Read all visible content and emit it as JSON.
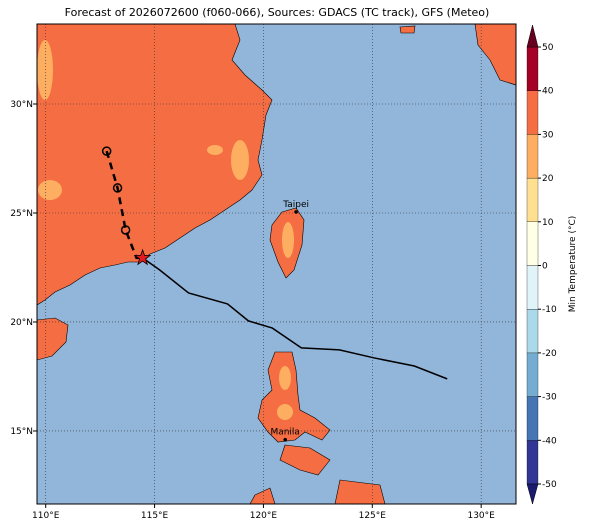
{
  "map": {
    "title": "Forecast of 2026072600 (f060-066), Sources: GDACS (TC track), GFS (Meteo)",
    "xlim": [
      109.6,
      131.6
    ],
    "ylim": [
      11.65,
      33.67
    ],
    "xticks": [
      {
        "value": 110,
        "label": "110°E"
      },
      {
        "value": 115,
        "label": "115°E"
      },
      {
        "value": 120,
        "label": "120°E"
      },
      {
        "value": 125,
        "label": "125°E"
      },
      {
        "value": 130,
        "label": "130°E"
      }
    ],
    "yticks": [
      {
        "value": 15,
        "label": "15°N"
      },
      {
        "value": 20,
        "label": "20°N"
      },
      {
        "value": 25,
        "label": "25°N"
      },
      {
        "value": 30,
        "label": "30°N"
      }
    ],
    "grid": true,
    "cities": [
      {
        "name": "Taipei",
        "lon": 121.5,
        "lat": 25.05
      },
      {
        "name": "Manila",
        "lon": 121.0,
        "lat": 14.6
      }
    ],
    "forecast_track": {
      "lon": [
        114.45,
        115.23,
        116.56,
        118.35,
        119.31,
        120.41,
        121.74,
        123.49,
        125.09,
        126.93,
        128.44
      ],
      "lat": [
        22.94,
        22.39,
        21.33,
        20.83,
        20.05,
        19.72,
        18.81,
        18.72,
        18.35,
        17.98,
        17.39
      ],
      "color": "#000000"
    },
    "past_track": {
      "lon": [
        112.8,
        113.3,
        113.67,
        114.17,
        114.45
      ],
      "lat": [
        27.84,
        26.15,
        24.22,
        22.94,
        22.94
      ],
      "color": "#000000"
    },
    "current_position": {
      "lon": 114.45,
      "lat": 22.94,
      "color": "#e41a1c"
    },
    "colorbar": {
      "label": "Min Temperature (°C)",
      "ticks": [
        -50,
        -40,
        -30,
        -20,
        -10,
        0,
        10,
        20,
        30,
        40,
        50
      ],
      "colors": [
        "#313695",
        "#4575b4",
        "#74add1",
        "#abd9e9",
        "#e0f3f8",
        "#ffffe5",
        "#fee090",
        "#fdae61",
        "#f46d43",
        "#a50026"
      ],
      "extend": "both"
    }
  }
}
